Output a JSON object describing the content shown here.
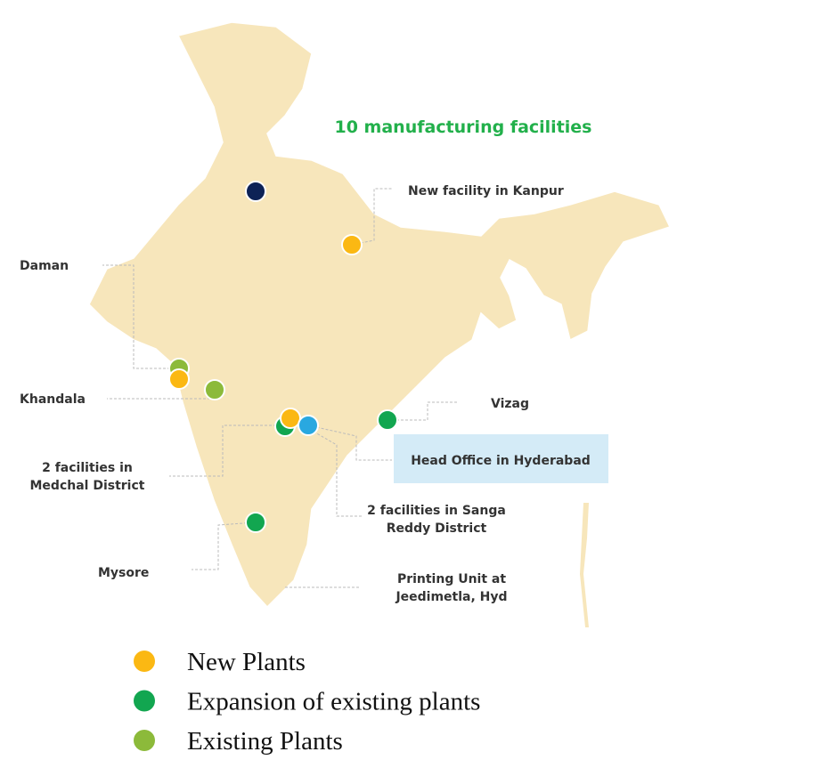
{
  "header": {
    "title": "10 manufacturing facilities"
  },
  "callouts": [
    [
      "New facility in Kanpur"
    ],
    [
      "Daman"
    ],
    [
      "Khandala"
    ],
    [
      "2 facilities in",
      "Medchal District"
    ],
    [
      "Mysore"
    ],
    [
      "Vizag"
    ],
    [
      "Head Office in Hyderabad"
    ],
    [
      "2 facilities in Sanga",
      "Reddy District"
    ],
    [
      "Printing Unit at",
      "Jeedimetla, Hyd"
    ]
  ],
  "legend": [
    {
      "name": "New Plants",
      "color": "#fbb813"
    },
    {
      "name": "Expansion of existing plants",
      "color": "#12a650"
    },
    {
      "name": "Existing Plants",
      "color": "#8cba3a"
    }
  ]
}
